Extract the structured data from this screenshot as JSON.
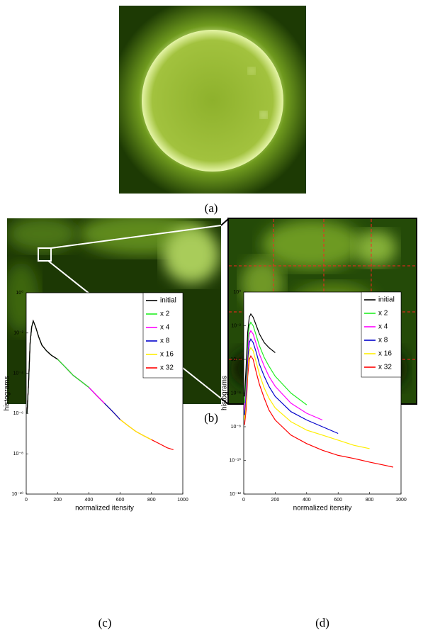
{
  "captions": [
    "(a)",
    "(b)"
  ],
  "chart_data": [
    {
      "type": "line",
      "caption": "(c)",
      "xlabel": "normalized itensity",
      "ylabel": "histograms",
      "xlim": [
        0,
        1000
      ],
      "xticks": [
        0,
        200,
        400,
        600,
        800,
        1000
      ],
      "yscale": "log",
      "ylim": [
        1e-10,
        1
      ],
      "yticks": [
        {
          "value": 1,
          "label": "10⁰"
        },
        {
          "value": 0.01,
          "label": "10⁻²"
        },
        {
          "value": 0.0001,
          "label": "10⁻⁴"
        },
        {
          "value": 1e-06,
          "label": "10⁻⁶"
        },
        {
          "value": 1e-08,
          "label": "10⁻⁸"
        },
        {
          "value": 1e-10,
          "label": "10⁻¹⁰"
        }
      ],
      "legend": "upper right",
      "series": [
        {
          "name": "initial",
          "color": "#000000",
          "x": [
            5,
            15,
            25,
            35,
            45,
            60,
            80,
            100,
            130,
            160,
            200
          ],
          "values": [
            1e-06,
            3.2e-05,
            0.0032,
            0.02,
            0.04,
            0.02,
            0.0063,
            0.0025,
            0.0013,
            0.00079,
            0.0005
          ]
        },
        {
          "name": "x 2",
          "color": "#22ee22",
          "x": [
            5,
            15,
            25,
            35,
            45,
            60,
            80,
            100,
            130,
            160,
            200,
            250,
            300,
            350,
            400
          ],
          "values": [
            1e-06,
            3.2e-05,
            0.0032,
            0.02,
            0.04,
            0.02,
            0.0063,
            0.0025,
            0.0013,
            0.00079,
            0.0005,
            0.0002,
            7.9e-05,
            4e-05,
            2e-05
          ]
        },
        {
          "name": "x 4",
          "color": "#ff00ff",
          "x": [
            5,
            15,
            25,
            35,
            45,
            60,
            80,
            100,
            130,
            160,
            200,
            250,
            300,
            350,
            400,
            450,
            500
          ],
          "values": [
            1e-06,
            3.2e-05,
            0.0032,
            0.02,
            0.04,
            0.02,
            0.0063,
            0.0025,
            0.0013,
            0.00079,
            0.0005,
            0.0002,
            7.9e-05,
            4e-05,
            2e-05,
            7.9e-06,
            3.2e-06
          ]
        },
        {
          "name": "x 8",
          "color": "#0000cc",
          "x": [
            5,
            15,
            25,
            35,
            45,
            60,
            80,
            100,
            130,
            160,
            200,
            250,
            300,
            350,
            400,
            450,
            500,
            550,
            600
          ],
          "values": [
            1e-06,
            3.2e-05,
            0.0032,
            0.02,
            0.04,
            0.02,
            0.0063,
            0.0025,
            0.0013,
            0.00079,
            0.0005,
            0.0002,
            7.9e-05,
            4e-05,
            2e-05,
            7.9e-06,
            3.2e-06,
            1.3e-06,
            5e-07
          ]
        },
        {
          "name": "x 16",
          "color": "#ffee00",
          "x": [
            5,
            15,
            25,
            35,
            45,
            60,
            80,
            100,
            130,
            160,
            200,
            250,
            300,
            350,
            400,
            450,
            500,
            550,
            600,
            650,
            700,
            750,
            800
          ],
          "values": [
            1e-06,
            3.2e-05,
            0.0032,
            0.02,
            0.04,
            0.02,
            0.0063,
            0.0025,
            0.0013,
            0.00079,
            0.0005,
            0.0002,
            7.9e-05,
            4e-05,
            2e-05,
            7.9e-06,
            3.2e-06,
            1.3e-06,
            5e-07,
            2.5e-07,
            1.3e-07,
            7.9e-08,
            5e-08
          ]
        },
        {
          "name": "x 32",
          "color": "#ff0000",
          "x": [
            5,
            15,
            25,
            35,
            45,
            60,
            80,
            100,
            130,
            160,
            200,
            250,
            300,
            350,
            400,
            450,
            500,
            550,
            600,
            650,
            700,
            750,
            800,
            850,
            900,
            940
          ],
          "values": [
            1e-06,
            3.2e-05,
            0.0032,
            0.02,
            0.04,
            0.02,
            0.0063,
            0.0025,
            0.0013,
            0.00079,
            0.0005,
            0.0002,
            7.9e-05,
            4e-05,
            2e-05,
            7.9e-06,
            3.2e-06,
            1.3e-06,
            5e-07,
            2.5e-07,
            1.3e-07,
            7.9e-08,
            5e-08,
            3.2e-08,
            2e-08,
            1.6e-08
          ]
        }
      ]
    },
    {
      "type": "line",
      "caption": "(d)",
      "xlabel": "normalized itensity",
      "ylabel": "histograms",
      "xlim": [
        0,
        1000
      ],
      "xticks": [
        0,
        200,
        400,
        600,
        800,
        1000
      ],
      "yscale": "log",
      "ylim": [
        1e-12,
        1
      ],
      "yticks": [
        {
          "value": 1,
          "label": "10⁰"
        },
        {
          "value": 0.01,
          "label": "10⁻²"
        },
        {
          "value": 0.0001,
          "label": "10⁻⁴"
        },
        {
          "value": 1e-06,
          "label": "10⁻⁶"
        },
        {
          "value": 1e-08,
          "label": "10⁻⁸"
        },
        {
          "value": 1e-10,
          "label": "10⁻¹⁰"
        },
        {
          "value": 1e-12,
          "label": "10⁻¹²"
        }
      ],
      "legend": "upper right",
      "series": [
        {
          "name": "initial",
          "color": "#000000",
          "x": [
            5,
            15,
            25,
            35,
            45,
            60,
            80,
            100,
            130,
            160,
            200
          ],
          "values": [
            6.3e-07,
            3.2e-05,
            0.004,
            0.032,
            0.05,
            0.032,
            0.01,
            0.0032,
            0.001,
            0.0005,
            0.00025
          ]
        },
        {
          "name": "x 2",
          "color": "#22ee22",
          "x": [
            5,
            15,
            25,
            35,
            45,
            60,
            80,
            100,
            130,
            160,
            200,
            300,
            400
          ],
          "values": [
            2.5e-07,
            1e-05,
            0.001,
            0.01,
            0.016,
            0.01,
            0.0025,
            0.00063,
            0.00013,
            4e-05,
            1e-05,
            1e-06,
            2e-07
          ]
        },
        {
          "name": "x 4",
          "color": "#ff00ff",
          "x": [
            5,
            15,
            25,
            35,
            45,
            60,
            80,
            100,
            130,
            160,
            200,
            300,
            400,
            500
          ],
          "values": [
            1e-07,
            3.2e-06,
            0.00032,
            0.0032,
            0.005,
            0.0032,
            0.00079,
            0.0002,
            4e-05,
            1e-05,
            2.5e-06,
            2.5e-07,
            6.3e-08,
            2.5e-08
          ]
        },
        {
          "name": "x 8",
          "color": "#0000cc",
          "x": [
            5,
            15,
            25,
            35,
            45,
            60,
            80,
            100,
            130,
            160,
            200,
            300,
            400,
            500,
            600
          ],
          "values": [
            5e-08,
            1e-06,
            0.0001,
            0.001,
            0.0016,
            0.001,
            0.00025,
            5e-05,
            1e-05,
            2.5e-06,
            6.3e-07,
            7.9e-08,
            2.5e-08,
            1e-08,
            4e-09
          ]
        },
        {
          "name": "x 16",
          "color": "#ffee00",
          "x": [
            5,
            15,
            25,
            35,
            45,
            60,
            80,
            100,
            130,
            160,
            200,
            300,
            400,
            500,
            600,
            700,
            800
          ],
          "values": [
            2.5e-08,
            3.2e-07,
            3.2e-05,
            0.00032,
            0.0005,
            0.00032,
            6.3e-05,
            1.3e-05,
            2e-06,
            5e-07,
            1.3e-07,
            2e-08,
            6.3e-09,
            3.2e-09,
            1.6e-09,
            7.9e-10,
            5e-10
          ]
        },
        {
          "name": "x 32",
          "color": "#ff0000",
          "x": [
            5,
            15,
            25,
            35,
            45,
            60,
            80,
            100,
            130,
            160,
            200,
            300,
            400,
            500,
            600,
            700,
            800,
            900,
            950
          ],
          "values": [
            1.3e-08,
            1e-07,
            1e-05,
            0.0001,
            0.00016,
            0.0001,
            1.6e-05,
            3.2e-06,
            5e-07,
            1e-07,
            2.5e-08,
            3.2e-09,
            1e-09,
            4e-10,
            2e-10,
            1.3e-10,
            7.9e-11,
            5e-11,
            4e-11
          ]
        }
      ]
    }
  ]
}
